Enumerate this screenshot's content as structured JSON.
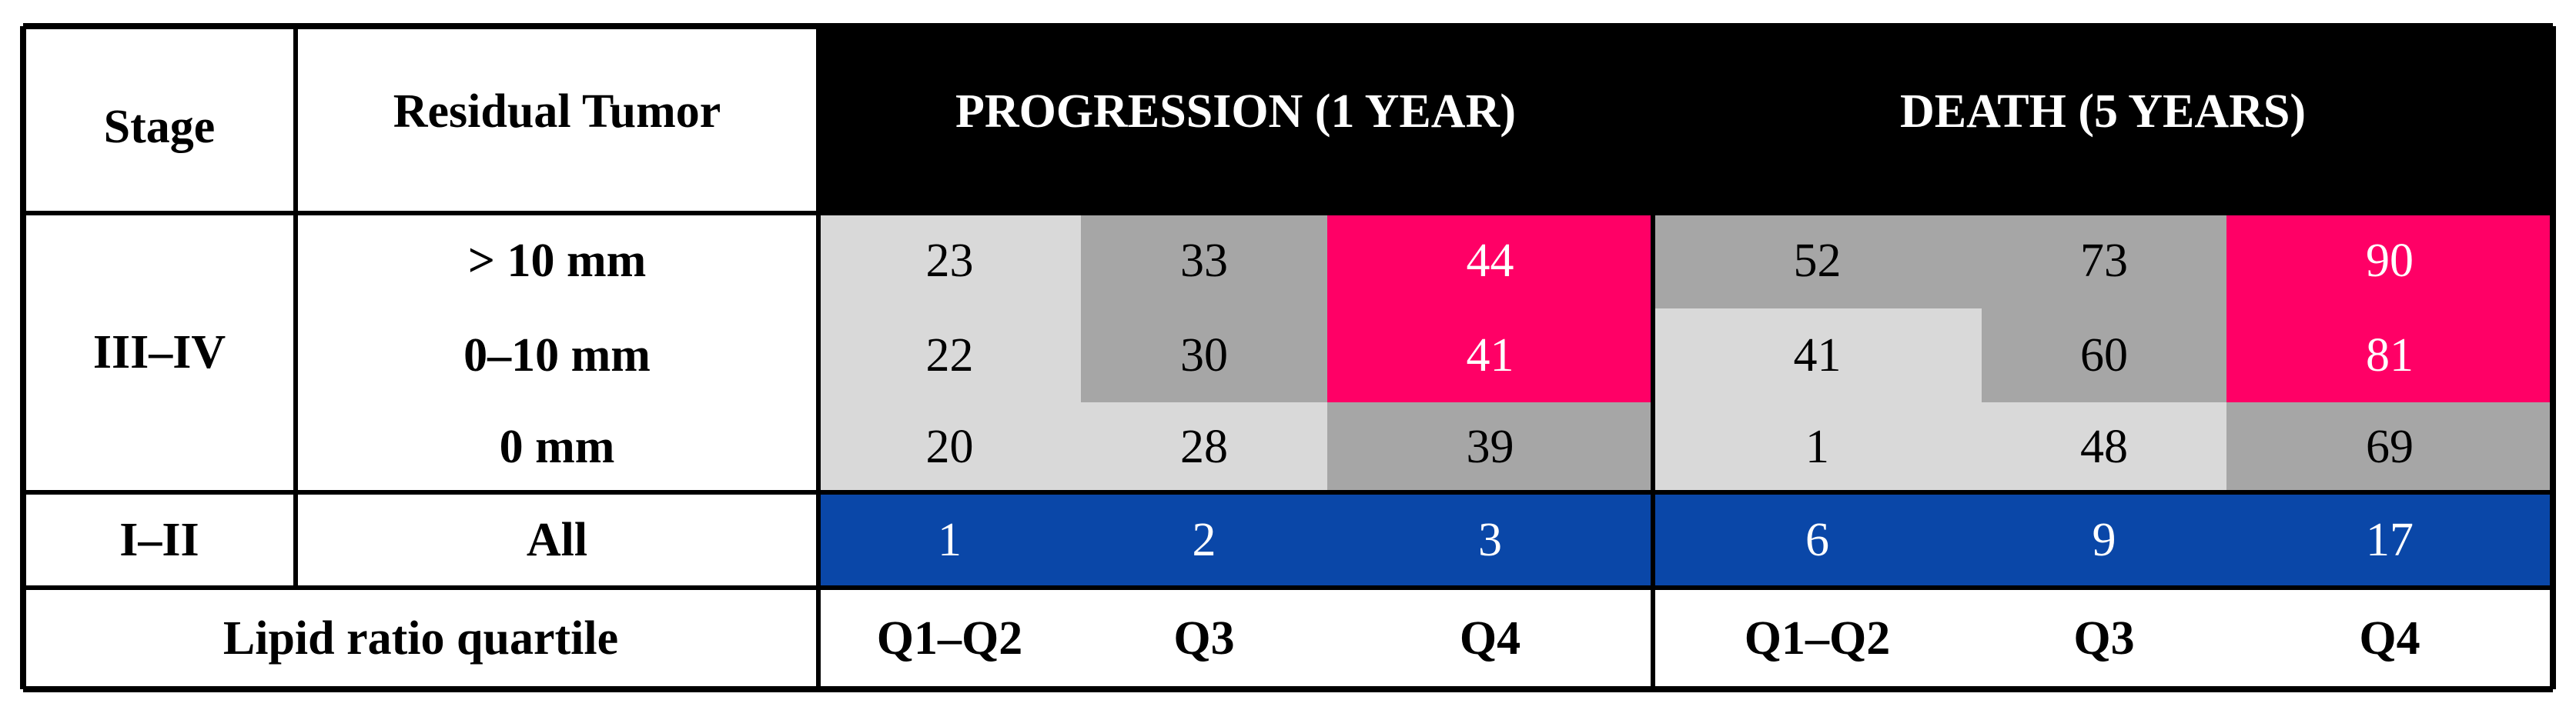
{
  "table": {
    "header": {
      "stage": "Stage",
      "residual_tumor": "Residual Tumor",
      "groups": [
        "PROGRESSION (1 YEAR)",
        "DEATH (5 YEARS)"
      ]
    },
    "stage_groups": [
      {
        "stage": "III–IV",
        "rows": [
          {
            "residual": "> 10 mm",
            "values": [
              23,
              33,
              44,
              52,
              73,
              90
            ],
            "fills": [
              "#d9d9d9",
              "#a6a6a6",
              "#ff0066",
              "#a6a6a6",
              "#a6a6a6",
              "#ff0066"
            ]
          },
          {
            "residual": "0–10 mm",
            "values": [
              22,
              30,
              41,
              41,
              60,
              81
            ],
            "fills": [
              "#d9d9d9",
              "#a6a6a6",
              "#ff0066",
              "#d9d9d9",
              "#a6a6a6",
              "#ff0066"
            ]
          },
          {
            "residual": "0 mm",
            "values": [
              20,
              28,
              39,
              1,
              48,
              69
            ],
            "fills": [
              "#d9d9d9",
              "#d9d9d9",
              "#a6a6a6",
              "#d9d9d9",
              "#d9d9d9",
              "#a6a6a6"
            ]
          }
        ]
      },
      {
        "stage": "I–II",
        "rows": [
          {
            "residual": "All",
            "values": [
              1,
              2,
              3,
              6,
              9,
              17
            ],
            "fills": [
              "#0a47a8",
              "#0a47a8",
              "#0a47a8",
              "#0a47a8",
              "#0a47a8",
              "#0a47a8"
            ]
          }
        ]
      }
    ],
    "footer": {
      "label": "Lipid ratio quartile",
      "quartiles": [
        "Q1–Q2",
        "Q3",
        "Q4",
        "Q1–Q2",
        "Q3",
        "Q4"
      ]
    }
  }
}
